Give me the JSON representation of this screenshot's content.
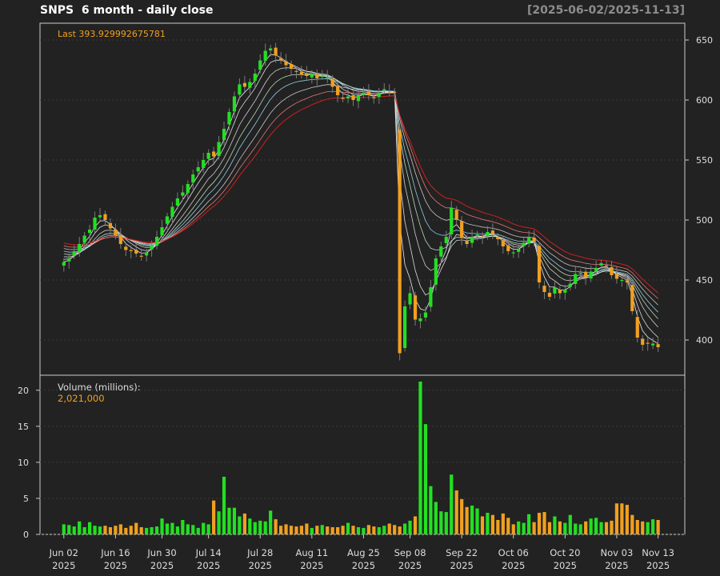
{
  "header": {
    "title": "SNPS  6 month - daily close",
    "range": "[2025-06-02/2025-11-13]"
  },
  "price_panel": {
    "last_prefix": "Last",
    "last_value": "393.929992675781"
  },
  "volume_panel": {
    "title": "Volume (millions):",
    "last_value": "2,021,000"
  },
  "colors": {
    "background": "#222222",
    "up": "#22e022",
    "down": "#f0a020",
    "grid": "#3a3a3a",
    "ma_lines": [
      "#ffffff",
      "#e8e8e8",
      "#d0ffd0",
      "#9bd6ff",
      "#ff4040"
    ]
  },
  "chart_data": [
    {
      "type": "candlestick",
      "x": [
        "2025-06-02",
        "2025-06-03",
        "2025-06-04",
        "2025-06-05",
        "2025-06-06",
        "2025-06-09",
        "2025-06-10",
        "2025-06-11",
        "2025-06-12",
        "2025-06-13",
        "2025-06-16",
        "2025-06-17",
        "2025-06-18",
        "2025-06-20",
        "2025-06-23",
        "2025-06-24",
        "2025-06-25",
        "2025-06-26",
        "2025-06-27",
        "2025-06-30",
        "2025-07-01",
        "2025-07-02",
        "2025-07-03",
        "2025-07-07",
        "2025-07-08",
        "2025-07-09",
        "2025-07-10",
        "2025-07-11",
        "2025-07-14",
        "2025-07-15",
        "2025-07-16",
        "2025-07-17",
        "2025-07-18",
        "2025-07-21",
        "2025-07-22",
        "2025-07-23",
        "2025-07-24",
        "2025-07-25",
        "2025-07-28",
        "2025-07-29",
        "2025-07-30",
        "2025-07-31",
        "2025-08-01",
        "2025-08-04",
        "2025-08-05",
        "2025-08-06",
        "2025-08-07",
        "2025-08-08",
        "2025-08-11",
        "2025-08-12",
        "2025-08-13",
        "2025-08-14",
        "2025-08-15",
        "2025-08-18",
        "2025-08-19",
        "2025-08-20",
        "2025-08-21",
        "2025-08-22",
        "2025-08-25",
        "2025-08-26",
        "2025-08-27",
        "2025-08-28",
        "2025-08-29",
        "2025-09-02",
        "2025-09-03",
        "2025-09-04",
        "2025-09-05",
        "2025-09-08",
        "2025-09-09",
        "2025-09-10",
        "2025-09-11",
        "2025-09-12",
        "2025-09-15",
        "2025-09-16",
        "2025-09-17",
        "2025-09-18",
        "2025-09-19",
        "2025-09-22",
        "2025-09-23",
        "2025-09-24",
        "2025-09-25",
        "2025-09-26",
        "2025-09-29",
        "2025-09-30",
        "2025-10-01",
        "2025-10-02",
        "2025-10-03",
        "2025-10-06",
        "2025-10-07",
        "2025-10-08",
        "2025-10-09",
        "2025-10-10",
        "2025-10-13",
        "2025-10-14",
        "2025-10-15",
        "2025-10-16",
        "2025-10-17",
        "2025-10-20",
        "2025-10-21",
        "2025-10-22",
        "2025-10-23",
        "2025-10-24",
        "2025-10-27",
        "2025-10-28",
        "2025-10-29",
        "2025-10-30",
        "2025-10-31",
        "2025-11-03",
        "2025-11-04",
        "2025-11-05",
        "2025-11-06",
        "2025-11-07",
        "2025-11-10",
        "2025-11-11",
        "2025-11-12",
        "2025-11-13"
      ],
      "close": [
        465,
        468,
        474,
        480,
        487,
        492,
        502,
        504,
        500,
        493,
        487,
        480,
        475,
        474,
        472,
        470,
        473,
        479,
        486,
        494,
        503,
        511,
        518,
        523,
        530,
        538,
        544,
        550,
        556,
        553,
        565,
        576,
        590,
        603,
        613,
        611,
        615,
        622,
        633,
        641,
        643,
        637,
        633,
        629,
        626,
        624,
        621,
        620,
        622,
        618,
        620,
        619,
        611,
        604,
        601,
        603,
        600,
        604,
        606,
        604,
        602,
        606,
        609,
        607,
        606,
        389,
        428,
        439,
        417,
        418,
        423,
        444,
        468,
        478,
        486,
        510,
        500,
        485,
        480,
        486,
        488,
        486,
        490,
        488,
        484,
        478,
        474,
        473,
        476,
        481,
        486,
        482,
        448,
        440,
        436,
        444,
        439,
        442,
        447,
        455,
        456,
        452,
        457,
        460,
        464,
        462,
        454,
        451,
        450,
        448,
        424,
        402,
        396,
        397,
        397,
        394
      ],
      "volume_millions": [
        1.4,
        1.3,
        1.1,
        1.8,
        1.0,
        1.7,
        1.2,
        1.1,
        1.2,
        1.0,
        1.2,
        1.4,
        0.9,
        1.2,
        1.6,
        1.0,
        0.9,
        1.0,
        1.1,
        2.2,
        1.5,
        1.6,
        1.1,
        2.0,
        1.4,
        1.3,
        0.9,
        1.6,
        1.4,
        4.7,
        3.2,
        8.0,
        3.7,
        3.7,
        2.5,
        2.9,
        2.2,
        1.7,
        1.9,
        1.8,
        3.3,
        2.1,
        1.2,
        1.4,
        1.2,
        1.1,
        1.2,
        1.5,
        0.9,
        1.2,
        1.3,
        1.1,
        1.0,
        1.0,
        1.2,
        1.6,
        1.2,
        1.0,
        0.9,
        1.3,
        1.1,
        1.0,
        1.2,
        1.5,
        1.3,
        1.1,
        1.5,
        1.9,
        2.5,
        21.2,
        15.3,
        6.7,
        4.5,
        3.2,
        3.1,
        8.3,
        6.1,
        4.9,
        3.8,
        4.0,
        3.6,
        2.5,
        3.0,
        2.7,
        2.0,
        2.9,
        2.3,
        1.4,
        1.8,
        1.6,
        2.8,
        1.7,
        3.0,
        3.1,
        1.7,
        2.5,
        1.8,
        1.6,
        2.7,
        1.5,
        1.4,
        1.8,
        2.2,
        2.3,
        1.7,
        1.7,
        1.9,
        4.3,
        4.3,
        4.1,
        2.7,
        2.0,
        1.8,
        1.7,
        2.1,
        2.0
      ],
      "ylim": [
        380,
        655
      ],
      "y_ticks": [
        400,
        450,
        500,
        550,
        600,
        650
      ]
    },
    {
      "type": "bar",
      "ylim": [
        0,
        22
      ],
      "y_ticks": [
        0,
        5,
        10,
        15,
        20
      ]
    }
  ],
  "x_axis": {
    "ticks": [
      {
        "date": "2025-06-02",
        "label": "Jun 02",
        "year": "2025"
      },
      {
        "date": "2025-06-16",
        "label": "Jun 16",
        "year": "2025"
      },
      {
        "date": "2025-06-30",
        "label": "Jun 30",
        "year": "2025"
      },
      {
        "date": "2025-07-14",
        "label": "Jul 14",
        "year": "2025"
      },
      {
        "date": "2025-07-28",
        "label": "Jul 28",
        "year": "2025"
      },
      {
        "date": "2025-08-11",
        "label": "Aug 11",
        "year": "2025"
      },
      {
        "date": "2025-08-25",
        "label": "Aug 25",
        "year": "2025"
      },
      {
        "date": "2025-09-08",
        "label": "Sep 08",
        "year": "2025"
      },
      {
        "date": "2025-09-22",
        "label": "Sep 22",
        "year": "2025"
      },
      {
        "date": "2025-10-06",
        "label": "Oct 06",
        "year": "2025"
      },
      {
        "date": "2025-10-20",
        "label": "Oct 20",
        "year": "2025"
      },
      {
        "date": "2025-11-03",
        "label": "Nov 03",
        "year": "2025"
      },
      {
        "date": "2025-11-13",
        "label": "Nov 13",
        "year": "2025"
      }
    ]
  }
}
